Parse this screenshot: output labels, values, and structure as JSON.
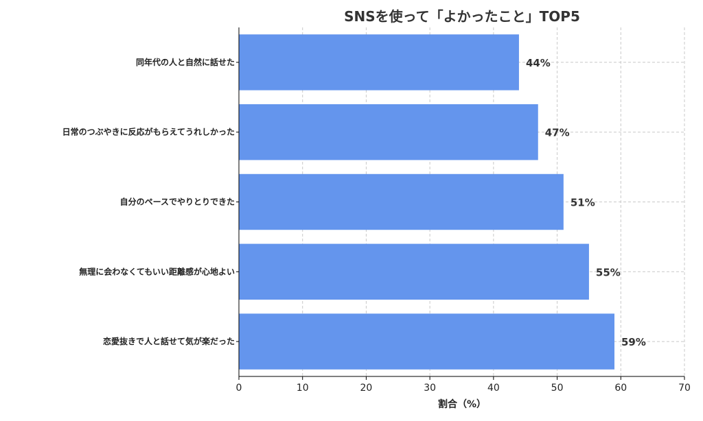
{
  "chart_data": {
    "type": "bar",
    "orientation": "horizontal",
    "title": "SNSを使って「よかったこと」TOP5",
    "xlabel": "割合（%）",
    "ylabel": "",
    "categories": [
      "同年代の人と自然に話せた",
      "日常のつぶやきに反応がもらえてうれしかった",
      "自分のペースでやりとりできた",
      "無理に会わなくてもいい距離感が心地よい",
      "恋愛抜きで人と話せて気が楽だった"
    ],
    "values": [
      44,
      47,
      51,
      55,
      59
    ],
    "value_labels": [
      "44%",
      "47%",
      "51%",
      "55%",
      "59%"
    ],
    "xlim": [
      0,
      70
    ],
    "xticks": [
      0,
      10,
      20,
      30,
      40,
      50,
      60,
      70
    ],
    "grid": true,
    "bar_color": "#6495ED"
  }
}
